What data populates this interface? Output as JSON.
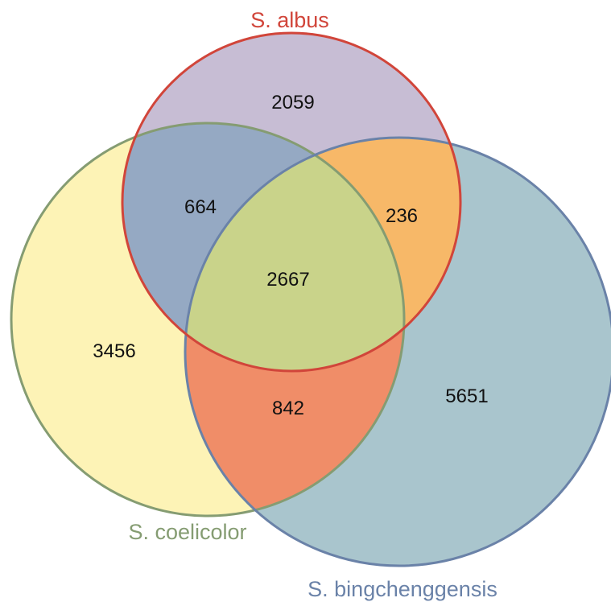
{
  "sets": {
    "albus": {
      "label": "S. albus",
      "stroke_color": "#d1453a",
      "label_color": "#d1453a"
    },
    "coelicolor": {
      "label": "S. coelicolor",
      "stroke_color": "#859c72",
      "label_color": "#859c72"
    },
    "bingchenggensis": {
      "label": "S. bingchenggensis",
      "stroke_color": "#6a82a8",
      "label_color": "#6a82a8"
    }
  },
  "regions": {
    "albus_only": {
      "count": "2059",
      "fill": "#c7bdd4"
    },
    "coelicolor_only": {
      "count": "3456",
      "fill": "#fdf3b6"
    },
    "bingchenggensis_only": {
      "count": "5651",
      "fill": "#a9c5cd"
    },
    "albus_coelicolor": {
      "count": "664",
      "fill": "#95a9c3"
    },
    "albus_bingchenggensis": {
      "count": "236",
      "fill": "#f7b868"
    },
    "coelicolor_bingchenggensis": {
      "count": "842",
      "fill": "#f08d68"
    },
    "all_three": {
      "count": "2667",
      "fill": "#c9d38a"
    }
  }
}
